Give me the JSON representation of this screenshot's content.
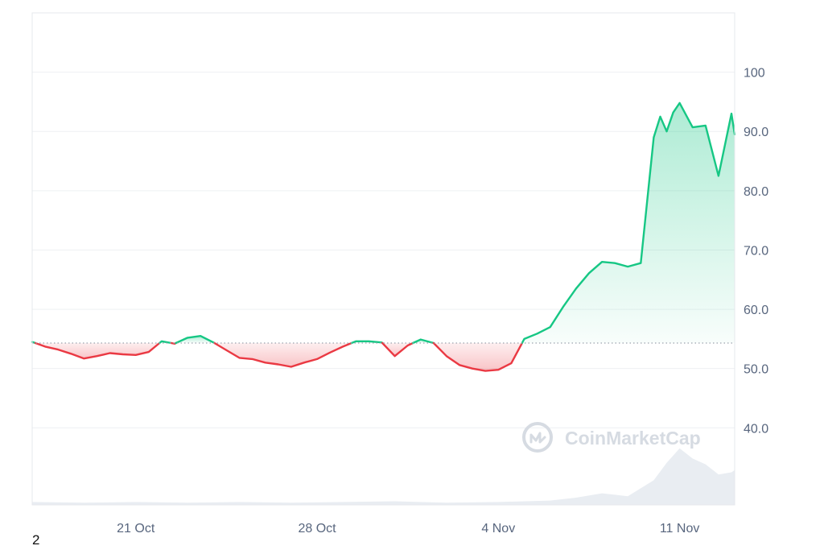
{
  "page_number": "2",
  "watermark": {
    "text": "CoinMarketCap",
    "icon": "coinmarketcap-logo-icon"
  },
  "colors": {
    "up_line": "#16c784",
    "down_line": "#ea3943",
    "up_fill": "#16c784",
    "down_fill": "#ea3943",
    "volume_fill": "#e9edf2",
    "tick_text": "#58667e",
    "baseline": "#9aa2ae"
  },
  "chart_data": {
    "type": "line",
    "title": "",
    "xlabel": "",
    "ylabel": "",
    "baseline_value": 54.3,
    "ylim": [
      27,
      110
    ],
    "xlim": [
      "2024-10-17T00:00",
      "2024-11-13T03:00"
    ],
    "x_ticks": [
      {
        "label": "21 Oct",
        "date": "2024-10-21"
      },
      {
        "label": "28 Oct",
        "date": "2024-10-28"
      },
      {
        "label": "4 Nov",
        "date": "2024-11-04"
      },
      {
        "label": "11 Nov",
        "date": "2024-11-11"
      }
    ],
    "y_ticks": [
      {
        "label": "40.0",
        "value": 40
      },
      {
        "label": "50.0",
        "value": 50
      },
      {
        "label": "60.0",
        "value": 60
      },
      {
        "label": "70.0",
        "value": 70
      },
      {
        "label": "80.0",
        "value": 80
      },
      {
        "label": "90.0",
        "value": 90
      },
      {
        "label": "100",
        "value": 100
      }
    ],
    "grid": true,
    "legend": "none",
    "series": [
      {
        "x": [
          "2024-10-17T00:00",
          "2024-10-17T12:00",
          "2024-10-18T00:00",
          "2024-10-18T12:00",
          "2024-10-19T00:00",
          "2024-10-19T12:00",
          "2024-10-20T00:00",
          "2024-10-20T12:00",
          "2024-10-21T00:00",
          "2024-10-21T12:00",
          "2024-10-22T00:00",
          "2024-10-22T12:00",
          "2024-10-23T00:00",
          "2024-10-23T12:00",
          "2024-10-24T00:00",
          "2024-10-24T12:00",
          "2024-10-25T00:00",
          "2024-10-25T12:00",
          "2024-10-26T00:00",
          "2024-10-26T12:00",
          "2024-10-27T00:00",
          "2024-10-27T12:00",
          "2024-10-28T00:00",
          "2024-10-28T12:00",
          "2024-10-29T00:00",
          "2024-10-29T12:00",
          "2024-10-30T00:00",
          "2024-10-30T12:00",
          "2024-10-31T00:00",
          "2024-10-31T12:00",
          "2024-11-01T00:00",
          "2024-11-01T12:00",
          "2024-11-02T00:00",
          "2024-11-02T12:00",
          "2024-11-03T00:00",
          "2024-11-03T12:00",
          "2024-11-04T00:00",
          "2024-11-04T12:00",
          "2024-11-05T00:00",
          "2024-11-05T12:00",
          "2024-11-06T00:00",
          "2024-11-06T12:00",
          "2024-11-07T00:00",
          "2024-11-07T12:00",
          "2024-11-08T00:00",
          "2024-11-08T12:00",
          "2024-11-09T00:00",
          "2024-11-09T12:00",
          "2024-11-10T00:00",
          "2024-11-10T06:00",
          "2024-11-10T12:00",
          "2024-11-10T18:00",
          "2024-11-11T00:00",
          "2024-11-11T12:00",
          "2024-11-12T00:00",
          "2024-11-12T12:00",
          "2024-11-13T00:00",
          "2024-11-13T03:00"
        ],
        "values": [
          54.5,
          53.7,
          53.2,
          52.5,
          51.7,
          52.1,
          52.6,
          52.4,
          52.3,
          52.8,
          54.6,
          54.2,
          55.2,
          55.5,
          54.4,
          53.1,
          51.8,
          51.6,
          51.0,
          50.7,
          50.3,
          51.0,
          51.6,
          52.7,
          53.7,
          54.6,
          54.6,
          54.4,
          52.1,
          53.9,
          54.9,
          54.3,
          52.1,
          50.6,
          50.0,
          49.6,
          49.8,
          50.9,
          55.0,
          55.9,
          57.0,
          60.4,
          63.5,
          66.1,
          68.0,
          67.8,
          67.2,
          67.8,
          89.0,
          92.5,
          90.0,
          93.2,
          94.8,
          90.7,
          91.0,
          82.5,
          93.0,
          89.5
        ]
      }
    ],
    "volume": {
      "x": [
        "2024-10-17",
        "2024-10-19",
        "2024-10-21",
        "2024-10-23",
        "2024-10-25",
        "2024-10-27",
        "2024-10-29",
        "2024-10-31",
        "2024-11-02",
        "2024-11-04",
        "2024-11-06",
        "2024-11-07",
        "2024-11-08",
        "2024-11-09",
        "2024-11-10",
        "2024-11-10T12:00",
        "2024-11-11",
        "2024-11-11T12:00",
        "2024-11-12",
        "2024-11-12T12:00",
        "2024-11-13",
        "2024-11-13T03:00"
      ],
      "relative": [
        0.04,
        0.03,
        0.04,
        0.03,
        0.04,
        0.03,
        0.04,
        0.05,
        0.03,
        0.04,
        0.06,
        0.1,
        0.16,
        0.12,
        0.34,
        0.58,
        0.78,
        0.64,
        0.56,
        0.42,
        0.45,
        0.48
      ]
    }
  }
}
